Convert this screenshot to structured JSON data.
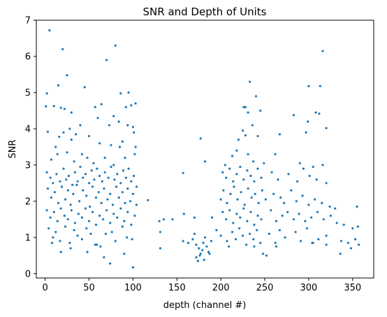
{
  "chart_data": {
    "type": "scatter",
    "title": "SNR and Depth of Units",
    "xlabel": "depth (channel #)",
    "ylabel": "SNR",
    "xlim": [
      -10,
      374
    ],
    "ylim": [
      -0.12,
      7.0
    ],
    "xticks": [
      0,
      50,
      100,
      150,
      200,
      250,
      300,
      350
    ],
    "yticks": [
      0,
      1,
      2,
      3,
      4,
      5,
      6,
      7
    ],
    "grid": false,
    "color": "#1f77b4",
    "points": [
      [
        5,
        6.72
      ],
      [
        20,
        6.2
      ],
      [
        80,
        6.3
      ],
      [
        70,
        5.9
      ],
      [
        316,
        6.15
      ],
      [
        25,
        5.48
      ],
      [
        15,
        5.2
      ],
      [
        45,
        5.15
      ],
      [
        233,
        5.3
      ],
      [
        300,
        5.18
      ],
      [
        313,
        5.18
      ],
      [
        2,
        4.98
      ],
      [
        86,
        4.98
      ],
      [
        95,
        5.0
      ],
      [
        240,
        4.9
      ],
      [
        1,
        4.62
      ],
      [
        10,
        4.63
      ],
      [
        18,
        4.58
      ],
      [
        22,
        4.55
      ],
      [
        30,
        4.45
      ],
      [
        57,
        4.6
      ],
      [
        64,
        4.68
      ],
      [
        78,
        4.35
      ],
      [
        92,
        4.6
      ],
      [
        98,
        4.65
      ],
      [
        103,
        4.7
      ],
      [
        228,
        4.6
      ],
      [
        231,
        4.45
      ],
      [
        245,
        4.5
      ],
      [
        308,
        4.45
      ],
      [
        312,
        4.42
      ],
      [
        3,
        3.92
      ],
      [
        21,
        3.9
      ],
      [
        28,
        4.0
      ],
      [
        35,
        3.85
      ],
      [
        40,
        4.1
      ],
      [
        60,
        4.3
      ],
      [
        73,
        4.1
      ],
      [
        84,
        4.2
      ],
      [
        94,
        4.1
      ],
      [
        100,
        4.05
      ],
      [
        101,
        3.9
      ],
      [
        225,
        3.95
      ],
      [
        236,
        4.1
      ],
      [
        267,
        3.85
      ],
      [
        283,
        4.38
      ],
      [
        299,
        4.2
      ],
      [
        320,
        4.02
      ],
      [
        226,
        4.6
      ],
      [
        16,
        3.78
      ],
      [
        12,
        3.5
      ],
      [
        30,
        3.7
      ],
      [
        50,
        3.8
      ],
      [
        62,
        3.6
      ],
      [
        75,
        3.55
      ],
      [
        85,
        3.5
      ],
      [
        88,
        3.65
      ],
      [
        103,
        3.5
      ],
      [
        177,
        3.73
      ],
      [
        220,
        3.7
      ],
      [
        228,
        3.82
      ],
      [
        242,
        3.8
      ],
      [
        297,
        3.9
      ],
      [
        7,
        3.15
      ],
      [
        14,
        3.3
      ],
      [
        25,
        3.35
      ],
      [
        33,
        3.1
      ],
      [
        42,
        3.3
      ],
      [
        48,
        3.2
      ],
      [
        55,
        3.05
      ],
      [
        68,
        3.2
      ],
      [
        78,
        3.0
      ],
      [
        91,
        3.2
      ],
      [
        102,
        3.3
      ],
      [
        182,
        3.1
      ],
      [
        205,
        3.0
      ],
      [
        213,
        3.25
      ],
      [
        218,
        3.4
      ],
      [
        231,
        3.3
      ],
      [
        237,
        3.1
      ],
      [
        249,
        3.05
      ],
      [
        262,
        3.3
      ],
      [
        290,
        3.05
      ],
      [
        305,
        2.95
      ],
      [
        316,
        3.0
      ],
      [
        2,
        2.8
      ],
      [
        6,
        2.65
      ],
      [
        9,
        2.5
      ],
      [
        13,
        2.75
      ],
      [
        17,
        2.55
      ],
      [
        21,
        2.9
      ],
      [
        24,
        2.6
      ],
      [
        27,
        2.7
      ],
      [
        31,
        2.45
      ],
      [
        34,
        2.8
      ],
      [
        37,
        2.55
      ],
      [
        40,
        2.95
      ],
      [
        43,
        2.65
      ],
      [
        46,
        2.75
      ],
      [
        50,
        2.5
      ],
      [
        53,
        2.85
      ],
      [
        56,
        2.6
      ],
      [
        59,
        2.9
      ],
      [
        62,
        2.7
      ],
      [
        65,
        2.55
      ],
      [
        68,
        2.8
      ],
      [
        72,
        2.65
      ],
      [
        75,
        2.95
      ],
      [
        79,
        2.6
      ],
      [
        82,
        2.75
      ],
      [
        86,
        2.5
      ],
      [
        89,
        2.85
      ],
      [
        92,
        2.65
      ],
      [
        95,
        2.9
      ],
      [
        98,
        2.55
      ],
      [
        101,
        2.7
      ],
      [
        104,
        2.4
      ],
      [
        157,
        2.78
      ],
      [
        202,
        2.8
      ],
      [
        206,
        2.65
      ],
      [
        210,
        2.9
      ],
      [
        214,
        2.55
      ],
      [
        218,
        2.75
      ],
      [
        222,
        2.95
      ],
      [
        226,
        2.6
      ],
      [
        230,
        2.85
      ],
      [
        234,
        2.7
      ],
      [
        238,
        2.55
      ],
      [
        242,
        2.9
      ],
      [
        246,
        2.65
      ],
      [
        258,
        2.8
      ],
      [
        265,
        2.6
      ],
      [
        277,
        2.75
      ],
      [
        287,
        2.55
      ],
      [
        294,
        2.9
      ],
      [
        301,
        2.7
      ],
      [
        309,
        2.6
      ],
      [
        320,
        2.5
      ],
      [
        3,
        2.35
      ],
      [
        7,
        2.1
      ],
      [
        11,
        2.25
      ],
      [
        15,
        1.95
      ],
      [
        19,
        2.4
      ],
      [
        23,
        2.05
      ],
      [
        26,
        2.3
      ],
      [
        29,
        1.9
      ],
      [
        32,
        2.2
      ],
      [
        36,
        2.45
      ],
      [
        39,
        2.0
      ],
      [
        43,
        2.3
      ],
      [
        47,
        2.15
      ],
      [
        51,
        1.85
      ],
      [
        54,
        2.4
      ],
      [
        58,
        2.1
      ],
      [
        61,
        2.25
      ],
      [
        64,
        1.95
      ],
      [
        67,
        2.35
      ],
      [
        71,
        2.05
      ],
      [
        74,
        2.2
      ],
      [
        77,
        1.9
      ],
      [
        81,
        2.4
      ],
      [
        84,
        2.1
      ],
      [
        88,
        2.25
      ],
      [
        91,
        1.95
      ],
      [
        94,
        2.35
      ],
      [
        97,
        2.0
      ],
      [
        100,
        2.2
      ],
      [
        104,
        1.9
      ],
      [
        117,
        2.03
      ],
      [
        200,
        2.05
      ],
      [
        203,
        2.3
      ],
      [
        207,
        1.95
      ],
      [
        211,
        2.2
      ],
      [
        215,
        2.4
      ],
      [
        219,
        2.05
      ],
      [
        223,
        2.25
      ],
      [
        227,
        1.9
      ],
      [
        231,
        2.35
      ],
      [
        235,
        2.1
      ],
      [
        239,
        2.2
      ],
      [
        243,
        1.95
      ],
      [
        247,
        2.3
      ],
      [
        251,
        2.05
      ],
      [
        260,
        2.2
      ],
      [
        268,
        2.1
      ],
      [
        272,
        1.95
      ],
      [
        280,
        2.3
      ],
      [
        286,
        2.0
      ],
      [
        293,
        2.15
      ],
      [
        300,
        1.9
      ],
      [
        307,
        2.05
      ],
      [
        315,
        1.95
      ],
      [
        324,
        1.85
      ],
      [
        330,
        1.8
      ],
      [
        355,
        1.85
      ],
      [
        2,
        1.75
      ],
      [
        6,
        1.55
      ],
      [
        10,
        1.7
      ],
      [
        14,
        1.45
      ],
      [
        18,
        1.8
      ],
      [
        22,
        1.6
      ],
      [
        26,
        1.5
      ],
      [
        30,
        1.75
      ],
      [
        34,
        1.4
      ],
      [
        38,
        1.65
      ],
      [
        42,
        1.55
      ],
      [
        46,
        1.8
      ],
      [
        50,
        1.45
      ],
      [
        54,
        1.7
      ],
      [
        58,
        1.35
      ],
      [
        62,
        1.6
      ],
      [
        66,
        1.5
      ],
      [
        70,
        1.75
      ],
      [
        74,
        1.4
      ],
      [
        78,
        1.65
      ],
      [
        82,
        1.55
      ],
      [
        86,
        1.8
      ],
      [
        90,
        1.45
      ],
      [
        94,
        1.7
      ],
      [
        98,
        1.35
      ],
      [
        102,
        1.6
      ],
      [
        130,
        1.45
      ],
      [
        135,
        1.5
      ],
      [
        145,
        1.5
      ],
      [
        158,
        1.65
      ],
      [
        170,
        1.55
      ],
      [
        190,
        1.55
      ],
      [
        202,
        1.7
      ],
      [
        206,
        1.5
      ],
      [
        210,
        1.75
      ],
      [
        214,
        1.4
      ],
      [
        218,
        1.65
      ],
      [
        222,
        1.55
      ],
      [
        226,
        1.8
      ],
      [
        230,
        1.45
      ],
      [
        234,
        1.7
      ],
      [
        238,
        1.35
      ],
      [
        242,
        1.6
      ],
      [
        246,
        1.5
      ],
      [
        257,
        1.75
      ],
      [
        263,
        1.45
      ],
      [
        270,
        1.6
      ],
      [
        276,
        1.7
      ],
      [
        283,
        1.5
      ],
      [
        289,
        1.65
      ],
      [
        296,
        1.45
      ],
      [
        303,
        1.55
      ],
      [
        310,
        1.7
      ],
      [
        317,
        1.5
      ],
      [
        325,
        1.6
      ],
      [
        332,
        1.4
      ],
      [
        340,
        1.35
      ],
      [
        350,
        1.25
      ],
      [
        356,
        1.3
      ],
      [
        4,
        1.25
      ],
      [
        9,
        1.0
      ],
      [
        12,
        1.15
      ],
      [
        17,
        0.9
      ],
      [
        23,
        1.3
      ],
      [
        28,
        0.85
      ],
      [
        33,
        1.2
      ],
      [
        37,
        1.05
      ],
      [
        42,
        0.95
      ],
      [
        47,
        1.25
      ],
      [
        52,
        1.1
      ],
      [
        57,
        0.8
      ],
      [
        63,
        0.75
      ],
      [
        69,
        1.1
      ],
      [
        76,
        1.15
      ],
      [
        80,
        0.9
      ],
      [
        88,
        1.3
      ],
      [
        93,
        1.0
      ],
      [
        99,
        0.95
      ],
      [
        131,
        1.15
      ],
      [
        157,
        0.9
      ],
      [
        163,
        0.85
      ],
      [
        168,
        0.95
      ],
      [
        170,
        1.1
      ],
      [
        172,
        0.8
      ],
      [
        175,
        0.7
      ],
      [
        177,
        0.55
      ],
      [
        179,
        0.65
      ],
      [
        180,
        0.85
      ],
      [
        182,
        1.0
      ],
      [
        184,
        0.75
      ],
      [
        186,
        0.6
      ],
      [
        189,
        0.9
      ],
      [
        195,
        1.2
      ],
      [
        200,
        1.05
      ],
      [
        207,
        0.9
      ],
      [
        213,
        1.15
      ],
      [
        217,
        0.95
      ],
      [
        221,
        1.25
      ],
      [
        225,
        1.05
      ],
      [
        229,
        0.8
      ],
      [
        233,
        1.1
      ],
      [
        237,
        0.95
      ],
      [
        241,
        1.2
      ],
      [
        245,
        0.85
      ],
      [
        255,
        1.1
      ],
      [
        262,
        0.85
      ],
      [
        267,
        1.2
      ],
      [
        273,
        1.0
      ],
      [
        285,
        1.15
      ],
      [
        291,
        0.9
      ],
      [
        298,
        1.25
      ],
      [
        304,
        0.85
      ],
      [
        311,
        0.95
      ],
      [
        320,
        1.05
      ],
      [
        337,
        0.9
      ],
      [
        345,
        0.85
      ],
      [
        353,
        0.95
      ],
      [
        8,
        0.85
      ],
      [
        18,
        0.6
      ],
      [
        29,
        0.7
      ],
      [
        48,
        0.6
      ],
      [
        59,
        0.8
      ],
      [
        67,
        0.45
      ],
      [
        74,
        0.28
      ],
      [
        90,
        0.55
      ],
      [
        100,
        0.17
      ],
      [
        131,
        0.7
      ],
      [
        172,
        0.45
      ],
      [
        174,
        0.35
      ],
      [
        176,
        0.5
      ],
      [
        181,
        0.38
      ],
      [
        187,
        0.55
      ],
      [
        209,
        0.75
      ],
      [
        238,
        0.75
      ],
      [
        248,
        0.55
      ],
      [
        252,
        0.5
      ],
      [
        263,
        0.75
      ],
      [
        305,
        0.85
      ],
      [
        320,
        0.8
      ],
      [
        336,
        0.55
      ],
      [
        348,
        0.7
      ],
      [
        357,
        0.8
      ]
    ]
  }
}
